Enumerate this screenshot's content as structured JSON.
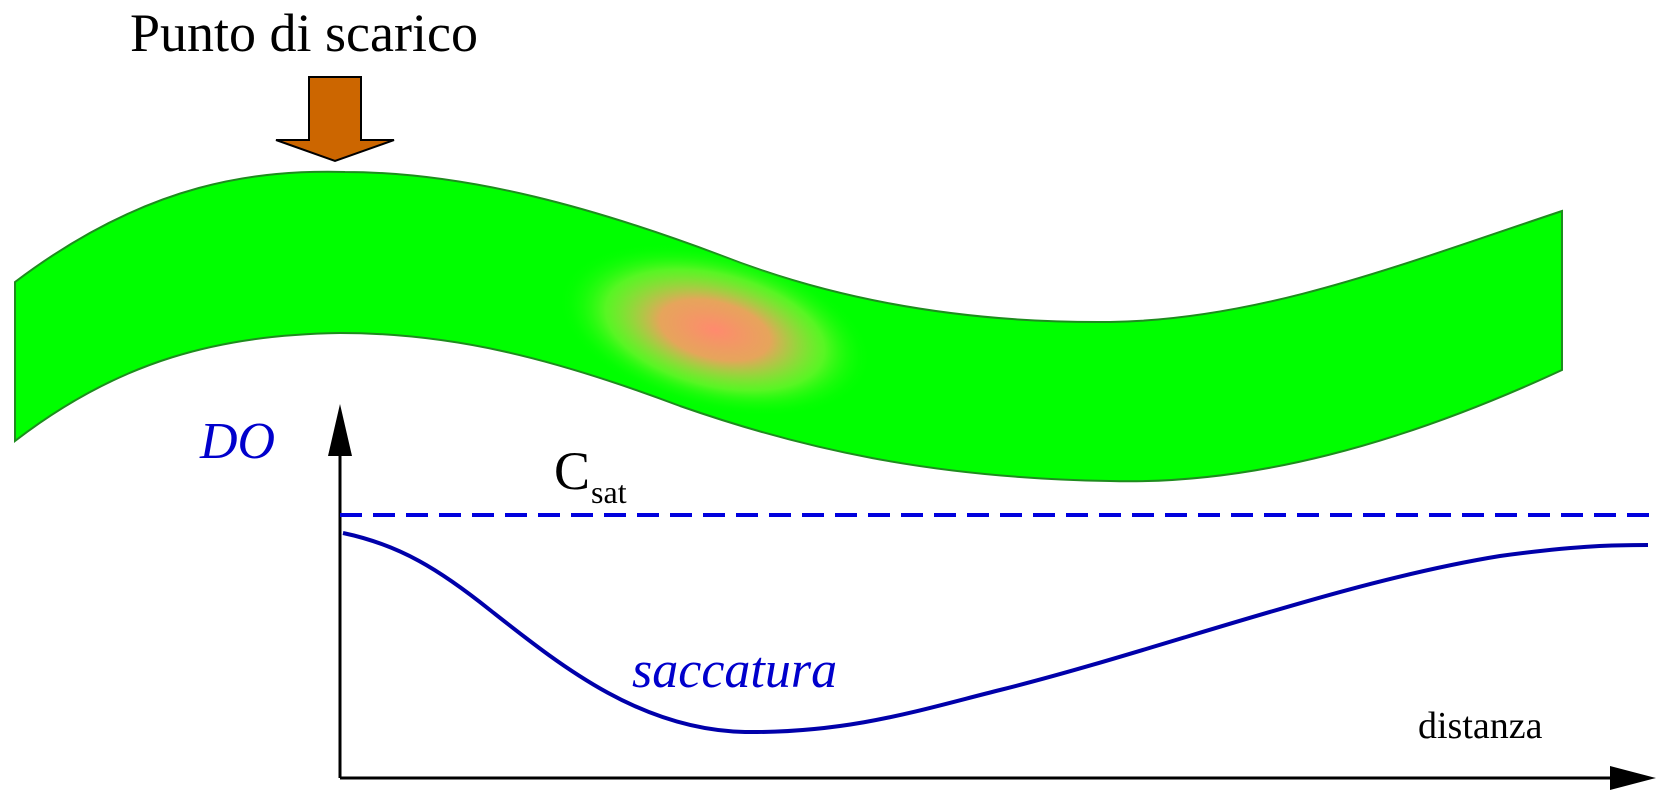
{
  "labels": {
    "discharge_point": "Punto di scarico",
    "y_axis": "DO",
    "saturation_main": "C",
    "saturation_sub": "sat",
    "sag": "saccatura",
    "x_axis": "distanza"
  },
  "colors": {
    "river_fill": "#00ff00",
    "river_edge": "#1e8c1e",
    "pollution_plume": "#ff8a6e",
    "arrow_fill": "#cc6600",
    "curve": "#0000aa",
    "saturation_line": "#0000dd",
    "accent_text": "#0000cc",
    "axis": "#000000"
  },
  "icons": {
    "discharge_arrow": "down-arrow-icon"
  }
}
